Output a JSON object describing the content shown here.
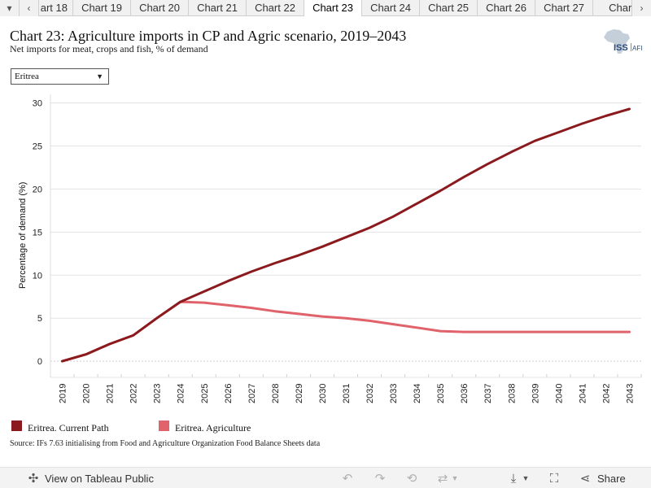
{
  "tabs": {
    "items": [
      "art 18",
      "Chart 19",
      "Chart 20",
      "Chart 21",
      "Chart 22",
      "Chart 23",
      "Chart 24",
      "Chart 25",
      "Chart 26",
      "Chart 27",
      "Chart"
    ],
    "active": "Chart 23"
  },
  "header": {
    "title": "Chart 23: Agriculture imports in CP and Agric scenario, 2019–2043",
    "subtitle": "Net imports for meat, crops and fish, % of demand",
    "logo_text": "ISS|AFI"
  },
  "filter": {
    "selected": "Eritrea"
  },
  "chart_data": {
    "type": "line",
    "title": "Chart 23: Agriculture imports in CP and Agric scenario, 2019–2043",
    "xlabel": "",
    "ylabel": "Percentage of demand (%)",
    "x": [
      "2019",
      "2020",
      "2021",
      "2022",
      "2023",
      "2024",
      "2025",
      "2026",
      "2027",
      "2028",
      "2029",
      "2030",
      "2031",
      "2032",
      "2033",
      "2034",
      "2035",
      "2036",
      "2037",
      "2038",
      "2039",
      "2040",
      "2041",
      "2042",
      "2043"
    ],
    "ylim": [
      -1.5,
      31
    ],
    "yticks": [
      0,
      5,
      10,
      15,
      20,
      25,
      30
    ],
    "grid": true,
    "legend_position": "bottom",
    "series": [
      {
        "name": "Eritrea. Current Path",
        "color": "#8b1a1e",
        "values": [
          0.0,
          0.8,
          2.0,
          3.0,
          5.0,
          6.9,
          8.1,
          9.3,
          10.4,
          11.4,
          12.3,
          13.3,
          14.4,
          15.5,
          16.8,
          18.3,
          19.8,
          21.4,
          22.9,
          24.3,
          25.6,
          26.6,
          27.6,
          28.5,
          29.3
        ]
      },
      {
        "name": "Eritrea. Agriculture",
        "color": "#e0626a",
        "values": [
          0.0,
          0.8,
          2.0,
          3.0,
          5.0,
          6.9,
          6.8,
          6.5,
          6.2,
          5.8,
          5.5,
          5.2,
          5.0,
          4.7,
          4.3,
          3.9,
          3.5,
          3.4,
          3.4,
          3.4,
          3.4,
          3.4,
          3.4,
          3.4,
          3.4
        ]
      }
    ]
  },
  "source": "Source: IFs 7.63 initialising from Food and Agriculture Organization Food Balance Sheets data",
  "toolbar": {
    "view_label": "View on Tableau Public",
    "share_label": "Share"
  }
}
